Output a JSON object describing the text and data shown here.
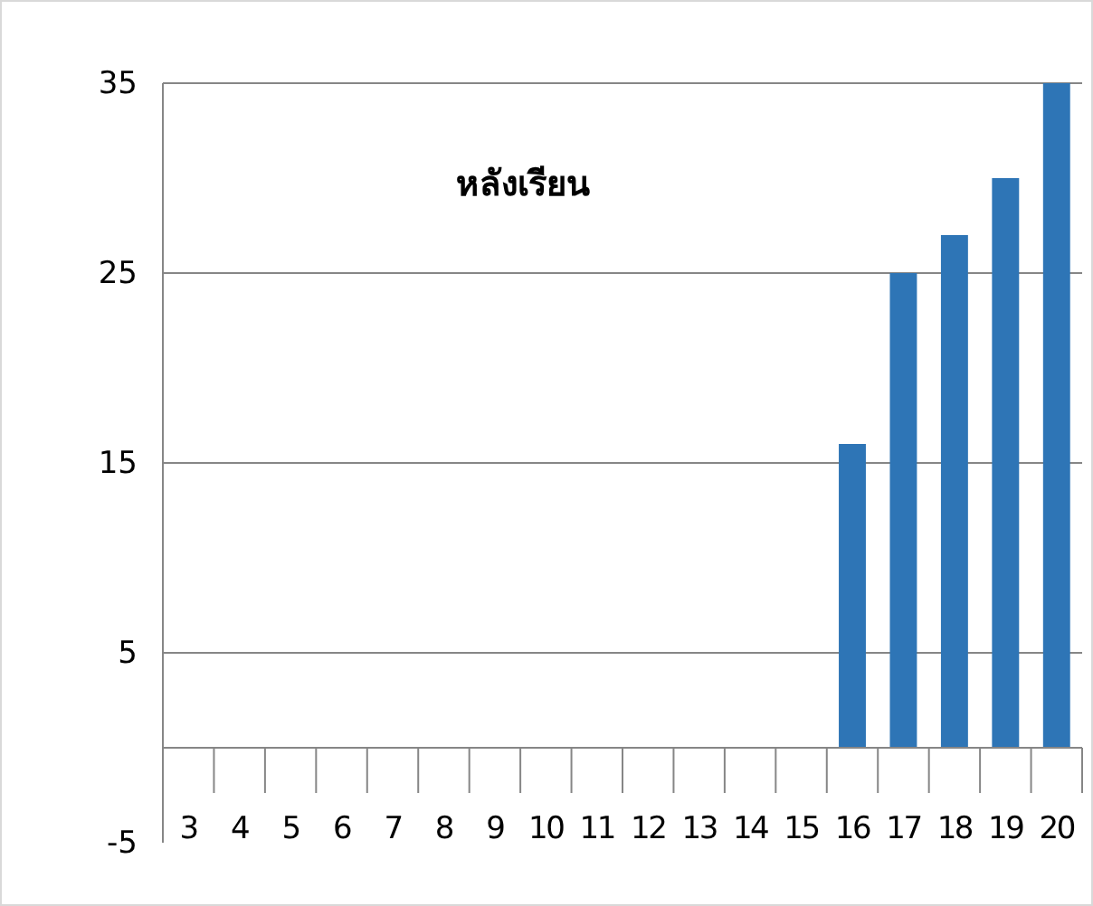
{
  "chart_data": {
    "type": "bar",
    "title": "หลังเรียน",
    "categories": [
      "3",
      "4",
      "5",
      "6",
      "7",
      "8",
      "9",
      "10",
      "11",
      "12",
      "13",
      "14",
      "15",
      "16",
      "17",
      "18",
      "19",
      "20"
    ],
    "values": [
      0,
      0,
      0,
      0,
      0,
      0,
      0,
      0,
      0,
      0,
      0,
      0,
      0,
      16,
      25,
      27,
      30,
      35
    ],
    "color": "#2e75b6",
    "ylim": [
      -5,
      35
    ],
    "yticks": [
      -5,
      5,
      15,
      25,
      35
    ],
    "grid": "y"
  }
}
